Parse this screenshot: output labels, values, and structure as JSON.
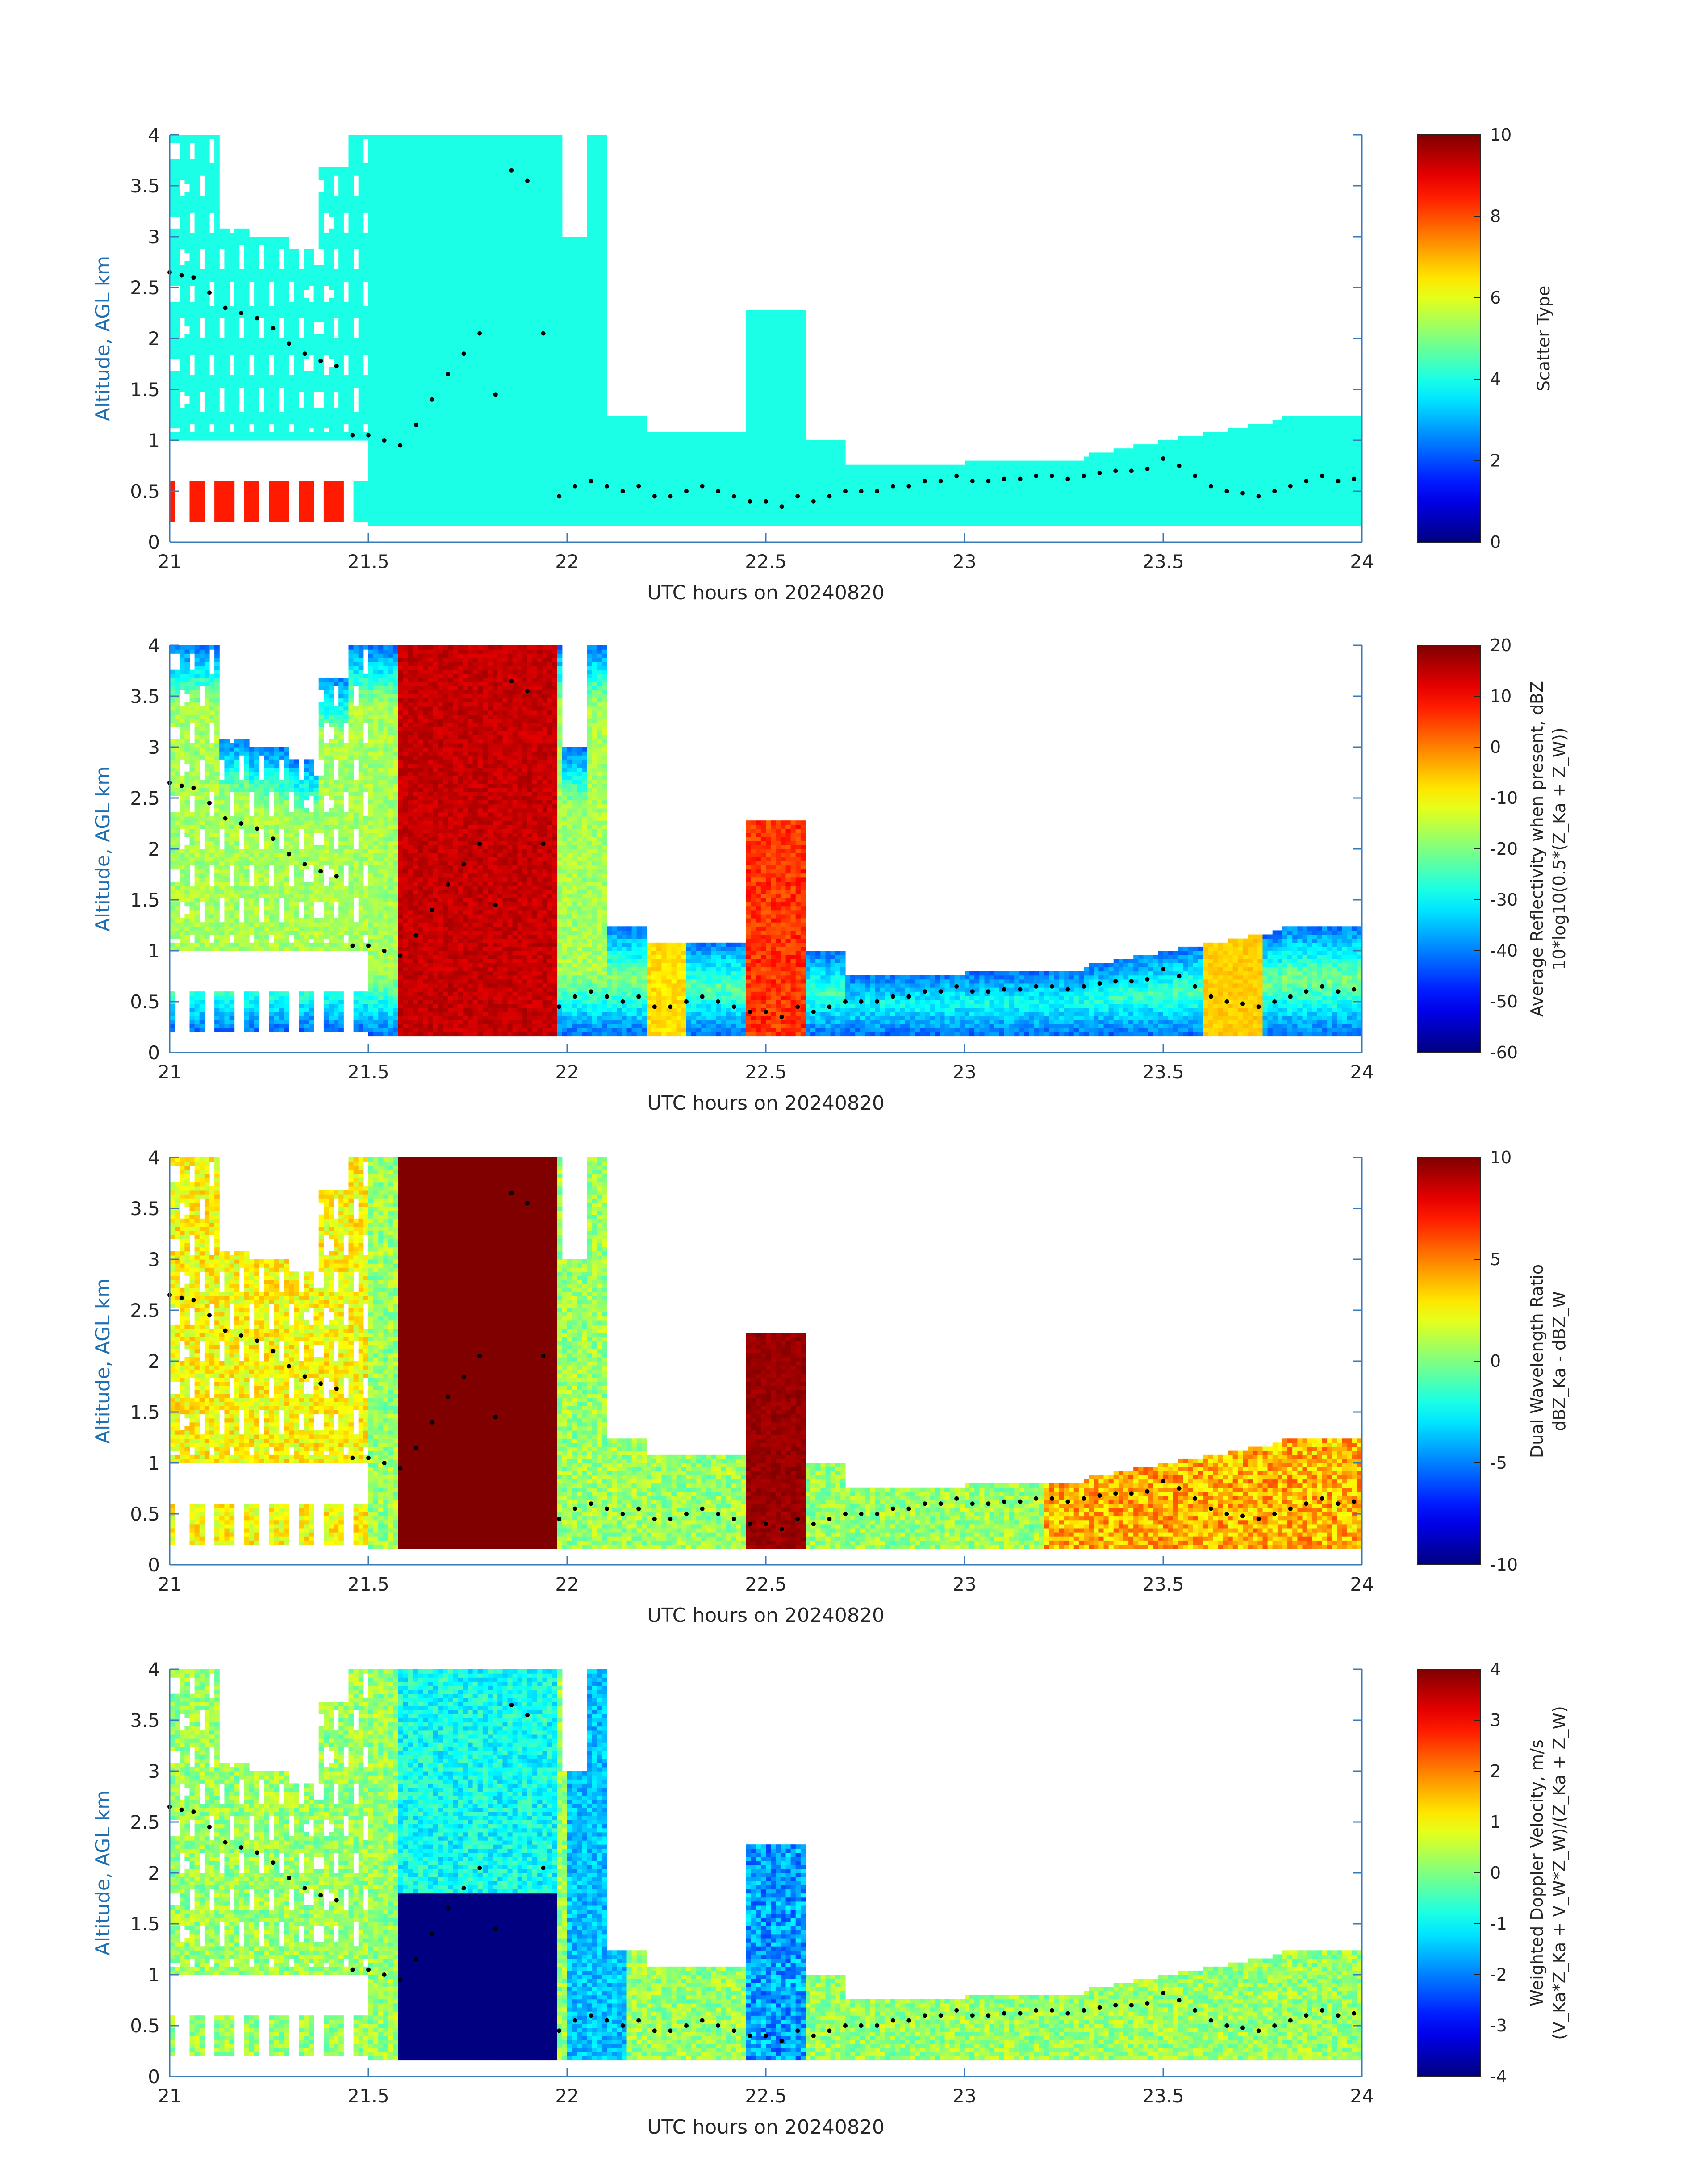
{
  "colors": {
    "axis": "#3a7ab8",
    "ylabel": "#1f6fb3",
    "text": "#262626",
    "colormap": "jet",
    "cloud_base_dots": "#000000"
  },
  "chart_data": [
    {
      "type": "heatmap",
      "xlabel": "UTC hours on 20240820",
      "ylabel": "Altitude, AGL km",
      "xlim": [
        21,
        24
      ],
      "ylim": [
        0,
        4
      ],
      "xticks": [
        "21",
        "21.5",
        "22",
        "22.5",
        "23",
        "23.5",
        "24"
      ],
      "yticks": [
        "0",
        "0.5",
        "1",
        "1.5",
        "2",
        "2.5",
        "3",
        "3.5",
        "4"
      ],
      "colorbar": {
        "label": "Scatter Type",
        "label2": "",
        "range": [
          0,
          10
        ],
        "ticks": [
          "0",
          "2",
          "4",
          "6",
          "8",
          "10"
        ]
      },
      "field": "scatter_type",
      "notes_values": {
        "dominant_value": 4,
        "low_level_clutter_value": 8.5
      }
    },
    {
      "type": "heatmap",
      "xlabel": "UTC hours on 20240820",
      "ylabel": "Altitude, AGL km",
      "xlim": [
        21,
        24
      ],
      "ylim": [
        0,
        4
      ],
      "xticks": [
        "21",
        "21.5",
        "22",
        "22.5",
        "23",
        "23.5",
        "24"
      ],
      "yticks": [
        "0",
        "0.5",
        "1",
        "1.5",
        "2",
        "2.5",
        "3",
        "3.5",
        "4"
      ],
      "colorbar": {
        "label": "Average Reflectivity when present, dBZ",
        "label2": "10*log10(0.5*(Z_Ka + Z_W))",
        "range": [
          -60,
          20
        ],
        "ticks": [
          "-60",
          "-50",
          "-40",
          "-30",
          "-20",
          "-10",
          "0",
          "10",
          "20"
        ]
      },
      "field": "reflectivity"
    },
    {
      "type": "heatmap",
      "xlabel": "UTC hours on 20240820",
      "ylabel": "Altitude, AGL km",
      "xlim": [
        21,
        24
      ],
      "ylim": [
        0,
        4
      ],
      "xticks": [
        "21",
        "21.5",
        "22",
        "22.5",
        "23",
        "23.5",
        "24"
      ],
      "yticks": [
        "0",
        "0.5",
        "1",
        "1.5",
        "2",
        "2.5",
        "3",
        "3.5",
        "4"
      ],
      "colorbar": {
        "label": "Dual Wavelength Ratio",
        "label2": "dBZ_Ka - dBZ_W",
        "range": [
          -10,
          10
        ],
        "ticks": [
          "-10",
          "-5",
          "0",
          "5",
          "10"
        ]
      },
      "field": "dwr"
    },
    {
      "type": "heatmap",
      "xlabel": "UTC hours on 20240820",
      "ylabel": "Altitude, AGL km",
      "xlim": [
        21,
        24
      ],
      "ylim": [
        0,
        4
      ],
      "xticks": [
        "21",
        "21.5",
        "22",
        "22.5",
        "23",
        "23.5",
        "24"
      ],
      "yticks": [
        "0",
        "0.5",
        "1",
        "1.5",
        "2",
        "2.5",
        "3",
        "3.5",
        "4"
      ],
      "colorbar": {
        "label": "Weighted Doppler Velocity, m/s",
        "label2": "(V_Ka*Z_Ka + V_W*Z_W)/(Z_Ka + Z_W)",
        "range": [
          -4,
          4
        ],
        "ticks": [
          "-4",
          "-3",
          "-2",
          "-1",
          "0",
          "1",
          "2",
          "3",
          "4"
        ]
      },
      "field": "velocity"
    }
  ],
  "cloud_base": {
    "hours": [
      21.0,
      21.03,
      21.06,
      21.1,
      21.14,
      21.18,
      21.22,
      21.26,
      21.3,
      21.34,
      21.38,
      21.42,
      21.46,
      21.5,
      21.54,
      21.58,
      21.62,
      21.66,
      21.7,
      21.74,
      21.78,
      21.82,
      21.86,
      21.9,
      21.94,
      21.98,
      22.02,
      22.06,
      22.1,
      22.14,
      22.18,
      22.22,
      22.26,
      22.3,
      22.34,
      22.38,
      22.42,
      22.46,
      22.5,
      22.54,
      22.58,
      22.62,
      22.66,
      22.7,
      22.74,
      22.78,
      22.82,
      22.86,
      22.9,
      22.94,
      22.98,
      23.02,
      23.06,
      23.1,
      23.14,
      23.18,
      23.22,
      23.26,
      23.3,
      23.34,
      23.38,
      23.42,
      23.46,
      23.5,
      23.54,
      23.58,
      23.62,
      23.66,
      23.7,
      23.74,
      23.78,
      23.82,
      23.86,
      23.9,
      23.94,
      23.98
    ],
    "altitude_km": [
      2.65,
      2.62,
      2.6,
      2.45,
      2.3,
      2.25,
      2.2,
      2.1,
      1.95,
      1.85,
      1.78,
      1.73,
      1.05,
      1.05,
      1.0,
      0.95,
      1.15,
      1.4,
      1.65,
      1.85,
      2.05,
      1.45,
      3.65,
      3.55,
      2.05,
      0.45,
      0.55,
      0.6,
      0.55,
      0.5,
      0.55,
      0.45,
      0.45,
      0.5,
      0.55,
      0.5,
      0.45,
      0.4,
      0.4,
      0.35,
      0.45,
      0.4,
      0.45,
      0.5,
      0.5,
      0.5,
      0.55,
      0.55,
      0.6,
      0.6,
      0.65,
      0.6,
      0.6,
      0.62,
      0.62,
      0.65,
      0.65,
      0.62,
      0.65,
      0.68,
      0.7,
      0.7,
      0.72,
      0.82,
      0.75,
      0.65,
      0.55,
      0.5,
      0.48,
      0.45,
      0.5,
      0.55,
      0.6,
      0.65,
      0.6,
      0.62
    ]
  }
}
